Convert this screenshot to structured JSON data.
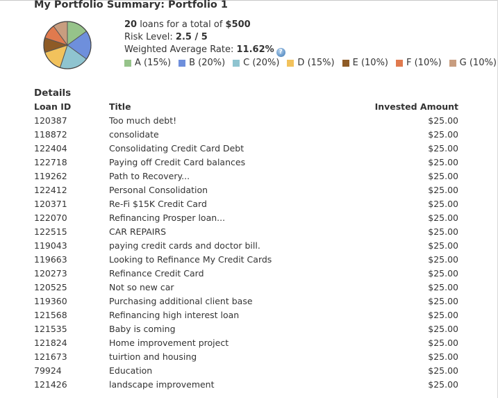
{
  "page_title": "My Portfolio Summary: Portfolio 1",
  "summary": {
    "loan_count": "20",
    "loans_text": " loans for a total of ",
    "total": "$500",
    "risk_label": "Risk Level: ",
    "risk_value": "2.5 / 5",
    "rate_label": "Weighted Average Rate: ",
    "rate_value": "11.62%",
    "help_icon": "help-icon"
  },
  "grades": [
    {
      "label": "A (15%)",
      "percent": 15,
      "color": "#96c38a"
    },
    {
      "label": "B (20%)",
      "percent": 20,
      "color": "#6e8fdc"
    },
    {
      "label": "C (20%)",
      "percent": 20,
      "color": "#8fc4d0"
    },
    {
      "label": "D (15%)",
      "percent": 15,
      "color": "#f2c25c"
    },
    {
      "label": "E (10%)",
      "percent": 10,
      "color": "#8e5b26"
    },
    {
      "label": "F (10%)",
      "percent": 10,
      "color": "#e07a4e"
    },
    {
      "label": "G (10%)",
      "percent": 10,
      "color": "#c89d7f"
    }
  ],
  "details": {
    "title": "Details",
    "columns": {
      "id": "Loan ID",
      "title": "Title",
      "amount": "Invested Amount"
    },
    "rows": [
      {
        "id": "120387",
        "title": "Too much debt!",
        "amount": "$25.00"
      },
      {
        "id": "118872",
        "title": "consolidate",
        "amount": "$25.00"
      },
      {
        "id": "122404",
        "title": "Consolidating Credit Card Debt",
        "amount": "$25.00"
      },
      {
        "id": "122718",
        "title": "Paying off Credit Card balances",
        "amount": "$25.00"
      },
      {
        "id": "119262",
        "title": "Path to Recovery...",
        "amount": "$25.00"
      },
      {
        "id": "122412",
        "title": "Personal Consolidation",
        "amount": "$25.00"
      },
      {
        "id": "120371",
        "title": "Re-Fi $15K Credit Card",
        "amount": "$25.00"
      },
      {
        "id": "122070",
        "title": "Refinancing Prosper loan...",
        "amount": "$25.00"
      },
      {
        "id": "122515",
        "title": "CAR REPAIRS",
        "amount": "$25.00"
      },
      {
        "id": "119043",
        "title": "paying credit cards and doctor bill.",
        "amount": "$25.00"
      },
      {
        "id": "119663",
        "title": "Looking to Refinance My Credit Cards",
        "amount": "$25.00"
      },
      {
        "id": "120273",
        "title": "Refinance Credit Card",
        "amount": "$25.00"
      },
      {
        "id": "120525",
        "title": "Not so new car",
        "amount": "$25.00"
      },
      {
        "id": "119360",
        "title": "Purchasing additional client base",
        "amount": "$25.00"
      },
      {
        "id": "121568",
        "title": "Refinancing high interest loan",
        "amount": "$25.00"
      },
      {
        "id": "121535",
        "title": "Baby is coming",
        "amount": "$25.00"
      },
      {
        "id": "121824",
        "title": "Home improvement project",
        "amount": "$25.00"
      },
      {
        "id": "121673",
        "title": "tuirtion and housing",
        "amount": "$25.00"
      },
      {
        "id": "79924",
        "title": "Education",
        "amount": "$25.00"
      },
      {
        "id": "121426",
        "title": "landscape improvement",
        "amount": "$25.00"
      }
    ]
  }
}
